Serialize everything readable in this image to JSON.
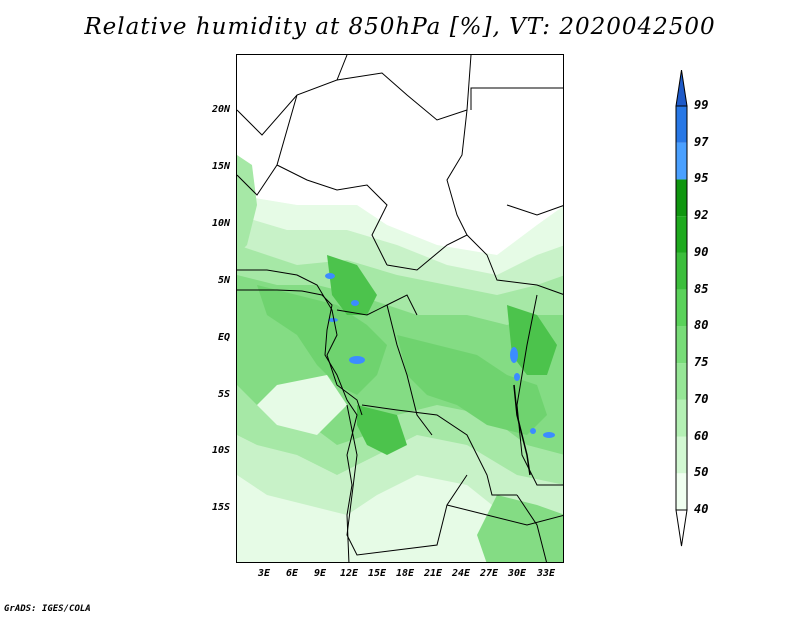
{
  "title": "Relative humidity at 850hPa [%], VT: 2020042500",
  "credit": "GrADS: IGES/COLA",
  "lat_ticks": [
    "20N",
    "15N",
    "10N",
    "5N",
    "EQ",
    "5S",
    "10S",
    "15S"
  ],
  "lon_ticks": [
    "3E",
    "6E",
    "9E",
    "12E",
    "15E",
    "18E",
    "21E",
    "24E",
    "27E",
    "30E",
    "33E"
  ],
  "colorbar": {
    "levels": [
      "40",
      "50",
      "60",
      "70",
      "75",
      "80",
      "85",
      "90",
      "92",
      "95",
      "97",
      "99"
    ],
    "colors": [
      "#f0fff0",
      "#d2f8d2",
      "#b4f0b4",
      "#96e696",
      "#78dc78",
      "#5ad25a",
      "#3cbe3c",
      "#1eaa1e",
      "#0f960f",
      "#4aa0ff",
      "#2878e6",
      "#1e5ac8"
    ]
  },
  "colors": {
    "land_coast": "#000000",
    "humid_blue": "#3c8cff"
  }
}
